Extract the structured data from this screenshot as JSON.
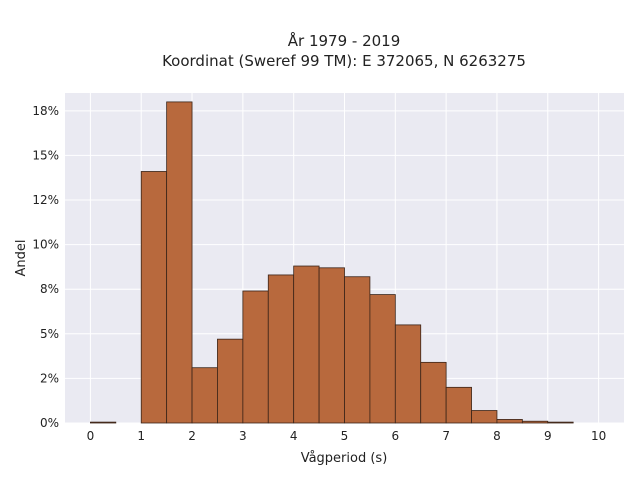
{
  "chart_data": {
    "type": "bar",
    "title": "År 1979 - 2019",
    "subtitle": "Koordinat (Sweref 99 TM): E 372065, N 6263275",
    "xlabel": "Vågperiod (s)",
    "ylabel": "Andel",
    "xlim": [
      -0.5,
      10.5
    ],
    "ylim": [
      0,
      0.185
    ],
    "x_ticks": [
      0,
      1,
      2,
      3,
      4,
      5,
      6,
      7,
      8,
      9,
      10
    ],
    "y_ticks": [
      0,
      0.025,
      0.05,
      0.075,
      0.1,
      0.125,
      0.15,
      0.175
    ],
    "y_tick_labels": [
      "0%",
      "2%",
      "5%",
      "8%",
      "10%",
      "12%",
      "15%",
      "18%"
    ],
    "bin_width": 0.5,
    "bin_starts": [
      0,
      0.5,
      1,
      1.5,
      2,
      2.5,
      3,
      3.5,
      4,
      4.5,
      5,
      5.5,
      6,
      6.5,
      7,
      7.5,
      8,
      8.5,
      9,
      9.5
    ],
    "values": [
      0.0005,
      0,
      0.141,
      0.18,
      0.031,
      0.047,
      0.074,
      0.083,
      0.088,
      0.087,
      0.082,
      0.072,
      0.055,
      0.034,
      0.02,
      0.007,
      0.002,
      0.001,
      0.0005,
      0
    ],
    "grid": true,
    "colors": {
      "bar_fill": "#b8693d",
      "bar_edge": "#3a2418",
      "plot_bg": "#eaeaf2",
      "grid": "#ffffff"
    }
  }
}
